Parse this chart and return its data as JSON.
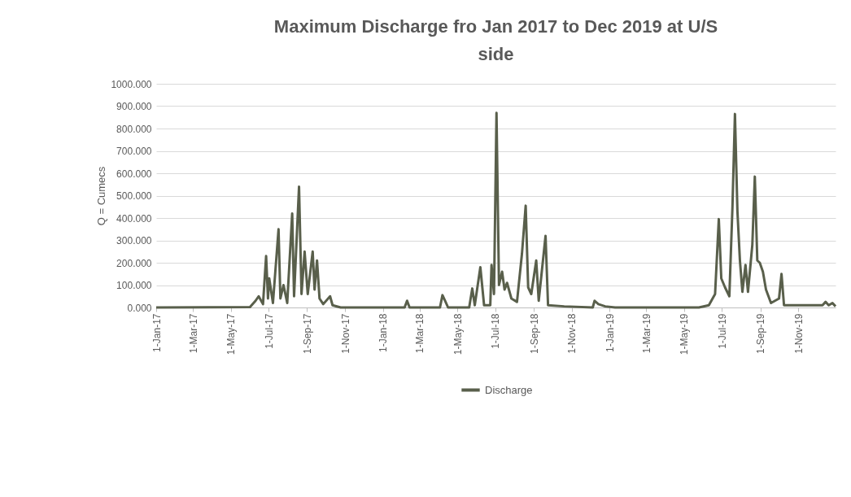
{
  "chart_data": {
    "type": "line",
    "title": "Maximum Discharge fro Jan 2017 to Dec 2019 at U/S side",
    "ylabel": "Q = Cumecs",
    "legend": "bottom",
    "grid": "y",
    "line_style": "solid",
    "xlim": [
      "2017-01-01",
      "2019-12-31"
    ],
    "xticks": [
      {
        "value": "2017-01-01",
        "label": "1-Jan-17"
      },
      {
        "value": "2017-03-01",
        "label": "1-Mar-17"
      },
      {
        "value": "2017-05-01",
        "label": "1-May-17"
      },
      {
        "value": "2017-07-01",
        "label": "1-Jul-17"
      },
      {
        "value": "2017-09-01",
        "label": "1-Sep-17"
      },
      {
        "value": "2017-11-01",
        "label": "1-Nov-17"
      },
      {
        "value": "2018-01-01",
        "label": "1-Jan-18"
      },
      {
        "value": "2018-03-01",
        "label": "1-Mar-18"
      },
      {
        "value": "2018-05-01",
        "label": "1-May-18"
      },
      {
        "value": "2018-07-01",
        "label": "1-Jul-18"
      },
      {
        "value": "2018-09-01",
        "label": "1-Sep-18"
      },
      {
        "value": "2018-11-01",
        "label": "1-Nov-18"
      },
      {
        "value": "2019-01-01",
        "label": "1-Jan-19"
      },
      {
        "value": "2019-03-01",
        "label": "1-Mar-19"
      },
      {
        "value": "2019-05-01",
        "label": "1-May-19"
      },
      {
        "value": "2019-07-01",
        "label": "1-Jul-19"
      },
      {
        "value": "2019-09-01",
        "label": "1-Sep-19"
      },
      {
        "value": "2019-11-01",
        "label": "1-Nov-19"
      }
    ],
    "ylim": [
      0,
      1000
    ],
    "yticks": [
      {
        "value": 0,
        "label": "0.000"
      },
      {
        "value": 100,
        "label": "100.000"
      },
      {
        "value": 200,
        "label": "200.000"
      },
      {
        "value": 300,
        "label": "300.000"
      },
      {
        "value": 400,
        "label": "400.000"
      },
      {
        "value": 500,
        "label": "500.000"
      },
      {
        "value": 600,
        "label": "600.000"
      },
      {
        "value": 700,
        "label": "700.000"
      },
      {
        "value": 800,
        "label": "800.000"
      },
      {
        "value": 900,
        "label": "900.000"
      },
      {
        "value": 1000,
        "label": "1000.000"
      }
    ],
    "series": [
      {
        "name": "Discharge",
        "color": "#595f4b",
        "x": [
          "2017-01-01",
          "2017-06-01",
          "2017-06-10",
          "2017-06-15",
          "2017-06-22",
          "2017-06-27",
          "2017-06-30",
          "2017-07-02",
          "2017-07-08",
          "2017-07-17",
          "2017-07-20",
          "2017-07-25",
          "2017-07-31",
          "2017-08-08",
          "2017-08-11",
          "2017-08-19",
          "2017-08-23",
          "2017-08-28",
          "2017-09-02",
          "2017-09-10",
          "2017-09-13",
          "2017-09-17",
          "2017-09-21",
          "2017-09-27",
          "2017-10-08",
          "2017-10-12",
          "2017-10-25",
          "2018-02-05",
          "2018-02-09",
          "2018-02-13",
          "2018-04-03",
          "2018-04-07",
          "2018-04-12",
          "2018-04-16",
          "2018-05-20",
          "2018-05-25",
          "2018-05-29",
          "2018-06-07",
          "2018-06-13",
          "2018-06-23",
          "2018-06-25",
          "2018-06-29",
          "2018-07-03",
          "2018-07-07",
          "2018-07-12",
          "2018-07-16",
          "2018-07-20",
          "2018-07-27",
          "2018-08-05",
          "2018-08-13",
          "2018-08-19",
          "2018-08-23",
          "2018-08-28",
          "2018-09-05",
          "2018-09-09",
          "2018-09-20",
          "2018-09-24",
          "2018-10-20",
          "2018-12-05",
          "2018-12-08",
          "2018-12-14",
          "2018-12-25",
          "2019-01-10",
          "2019-05-25",
          "2019-06-10",
          "2019-06-20",
          "2019-06-26",
          "2019-06-30",
          "2019-07-06",
          "2019-07-13",
          "2019-07-18",
          "2019-07-22",
          "2019-07-26",
          "2019-07-30",
          "2019-08-03",
          "2019-08-08",
          "2019-08-12",
          "2019-08-19",
          "2019-08-23",
          "2019-08-27",
          "2019-08-31",
          "2019-09-05",
          "2019-09-10",
          "2019-09-18",
          "2019-10-01",
          "2019-10-05",
          "2019-10-09",
          "2019-12-10",
          "2019-12-15",
          "2019-12-20",
          "2019-12-26",
          "2019-12-31"
        ],
        "values": [
          0,
          2,
          30,
          50,
          15,
          230,
          40,
          130,
          20,
          350,
          40,
          100,
          20,
          420,
          50,
          540,
          60,
          250,
          60,
          250,
          80,
          210,
          40,
          15,
          50,
          10,
          0,
          0,
          30,
          0,
          0,
          55,
          25,
          0,
          0,
          85,
          10,
          180,
          10,
          10,
          190,
          60,
          870,
          100,
          160,
          80,
          110,
          40,
          25,
          240,
          455,
          90,
          60,
          210,
          30,
          320,
          10,
          5,
          0,
          30,
          15,
          5,
          0,
          0,
          10,
          60,
          395,
          130,
          90,
          50,
          450,
          865,
          430,
          210,
          70,
          190,
          70,
          280,
          585,
          210,
          200,
          160,
          80,
          20,
          40,
          150,
          10,
          10,
          25,
          10,
          20,
          5
        ]
      }
    ]
  }
}
